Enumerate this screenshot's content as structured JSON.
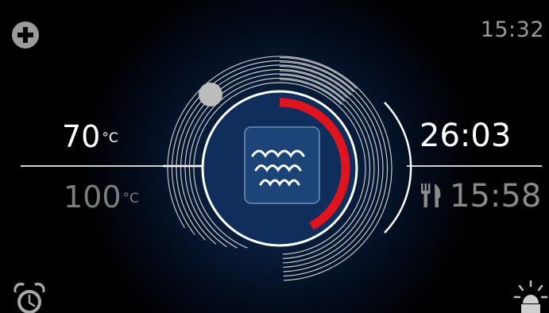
{
  "status": {
    "clock": "15:32"
  },
  "temperature": {
    "current_value": "70",
    "target_value": "100",
    "unit": "°C"
  },
  "timer": {
    "remaining": "26:03",
    "end_time": "15:58"
  },
  "mode": {
    "icon": "steam-icon"
  },
  "progress": {
    "fraction": 0.42
  },
  "colors": {
    "background": "#000000",
    "accent_red": "#e0141e",
    "ring": "#ffffff",
    "dim_text": "#7c7c7c",
    "clock_text": "#9a9a9a"
  },
  "icons": {
    "top_left": "add-icon",
    "bottom_left": "alarm-clock-icon",
    "bottom_right": "oven-light-icon",
    "end_time": "cutlery-icon"
  }
}
